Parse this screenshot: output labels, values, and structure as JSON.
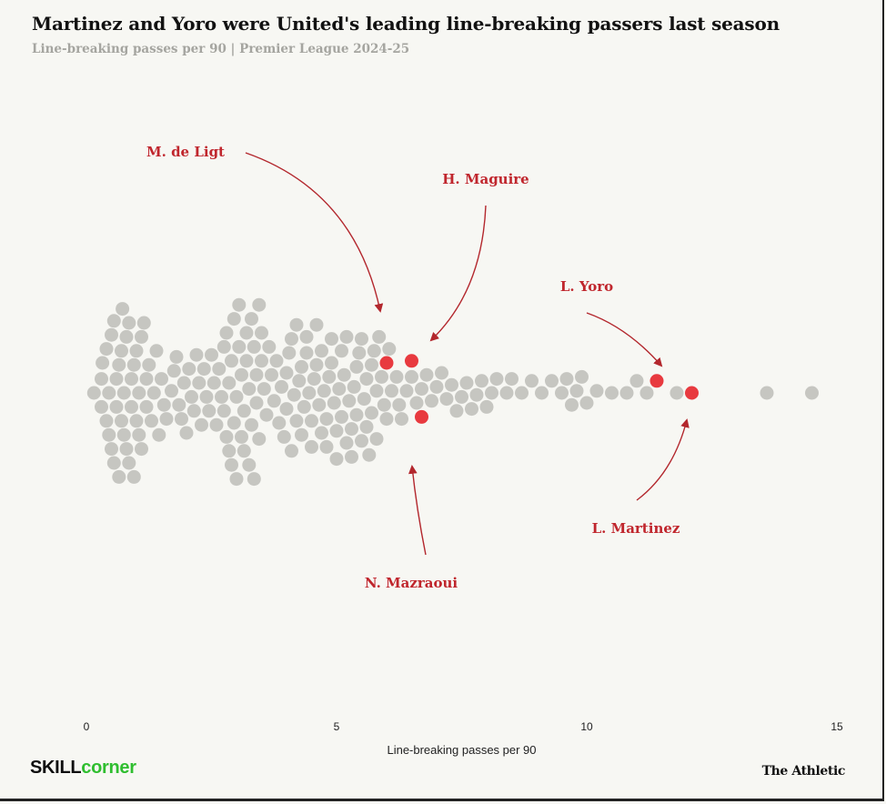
{
  "title": "Martinez and Yoro were United's leading line-breaking passers last season",
  "subtitle": "Line-breaking passes per 90 | Premier League 2024-25",
  "logos": {
    "left_part1": "SKILL",
    "left_part2": "corner",
    "right": "The Athletic"
  },
  "colors": {
    "background": "#f7f7f3",
    "highlight": "#e5252b",
    "other": "#8a8a86",
    "annotation": "#c0262d"
  },
  "chart_data": {
    "type": "scatter",
    "subtype": "beeswarm",
    "xlabel": "Line-breaking passes per 90",
    "xlim": [
      0,
      15
    ],
    "xticks": [
      0,
      5,
      10,
      15
    ],
    "highlighted": [
      {
        "name": "M. de Ligt",
        "x": 6.0
      },
      {
        "name": "H. Maguire",
        "x": 6.7
      },
      {
        "name": "N. Mazraoui",
        "x": 6.5
      },
      {
        "name": "L. Yoro",
        "x": 11.4
      },
      {
        "name": "L. Martinez",
        "x": 12.1
      }
    ],
    "others_x": [
      0.15,
      0.3,
      0.3,
      0.32,
      0.4,
      0.4,
      0.45,
      0.45,
      0.5,
      0.5,
      0.55,
      0.55,
      0.6,
      0.6,
      0.65,
      0.65,
      0.7,
      0.7,
      0.72,
      0.75,
      0.75,
      0.8,
      0.8,
      0.85,
      0.85,
      0.9,
      0.9,
      0.95,
      0.95,
      1.0,
      1.0,
      1.05,
      1.05,
      1.1,
      1.1,
      1.15,
      1.2,
      1.2,
      1.25,
      1.3,
      1.35,
      1.4,
      1.45,
      1.5,
      1.55,
      1.6,
      1.7,
      1.75,
      1.8,
      1.85,
      1.9,
      1.95,
      2.0,
      2.05,
      2.1,
      2.15,
      2.2,
      2.25,
      2.3,
      2.35,
      2.4,
      2.45,
      2.5,
      2.55,
      2.6,
      2.65,
      2.7,
      2.75,
      2.75,
      2.8,
      2.8,
      2.85,
      2.85,
      2.9,
      2.9,
      2.95,
      2.95,
      3.0,
      3.0,
      3.05,
      3.05,
      3.1,
      3.1,
      3.15,
      3.15,
      3.2,
      3.2,
      3.25,
      3.25,
      3.3,
      3.3,
      3.35,
      3.35,
      3.4,
      3.4,
      3.45,
      3.45,
      3.5,
      3.5,
      3.55,
      3.6,
      3.65,
      3.7,
      3.75,
      3.8,
      3.85,
      3.9,
      3.95,
      4.0,
      4.0,
      4.05,
      4.1,
      4.1,
      4.15,
      4.2,
      4.2,
      4.25,
      4.3,
      4.3,
      4.35,
      4.4,
      4.4,
      4.45,
      4.5,
      4.5,
      4.55,
      4.6,
      4.6,
      4.65,
      4.7,
      4.7,
      4.75,
      4.8,
      4.8,
      4.85,
      4.9,
      4.9,
      4.95,
      5.0,
      5.0,
      5.05,
      5.1,
      5.1,
      5.15,
      5.2,
      5.2,
      5.25,
      5.3,
      5.3,
      5.35,
      5.4,
      5.4,
      5.45,
      5.5,
      5.5,
      5.55,
      5.6,
      5.6,
      5.65,
      5.7,
      5.7,
      5.75,
      5.8,
      5.8,
      5.85,
      5.9,
      5.95,
      6.0,
      6.05,
      6.1,
      6.2,
      6.25,
      6.3,
      6.4,
      6.5,
      6.6,
      6.7,
      6.8,
      6.9,
      7.0,
      7.1,
      7.2,
      7.3,
      7.4,
      7.5,
      7.6,
      7.7,
      7.8,
      7.9,
      8.0,
      8.1,
      8.2,
      8.4,
      8.5,
      8.7,
      8.9,
      9.1,
      9.3,
      9.5,
      9.6,
      9.7,
      9.8,
      9.9,
      10.0,
      10.2,
      10.5,
      10.8,
      11.0,
      11.2,
      11.8,
      13.6,
      14.5
    ]
  },
  "annotations": [
    {
      "label": "M. de Ligt"
    },
    {
      "label": "H. Maguire"
    },
    {
      "label": "L. Yoro"
    },
    {
      "label": "N. Mazraoui"
    },
    {
      "label": "L. Martinez"
    }
  ]
}
